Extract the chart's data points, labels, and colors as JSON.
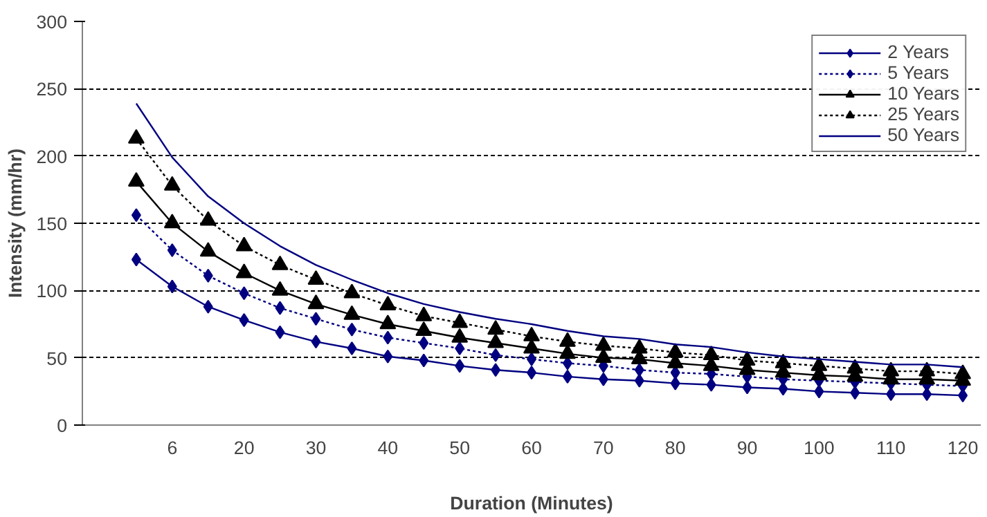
{
  "chart_data": {
    "type": "line",
    "xlabel": "Duration (Minutes)",
    "ylabel": "Intensity (mm/hr)",
    "categories": [
      null,
      null,
      "6",
      null,
      "20",
      null,
      "30",
      null,
      "40",
      null,
      "50",
      null,
      "60",
      null,
      "70",
      null,
      "80",
      null,
      "90",
      null,
      "100",
      null,
      "110",
      null,
      "120"
    ],
    "ylim": [
      0,
      300
    ],
    "yticks": [
      0,
      50,
      100,
      150,
      200,
      250,
      300
    ],
    "grid": "y",
    "legend": "top right",
    "series": [
      {
        "name": "2 Years",
        "color": "#000080",
        "marker": "diamond",
        "line_style": "solid",
        "values": [
          null,
          123,
          103,
          88,
          78,
          69,
          62,
          57,
          51,
          48,
          44,
          41,
          39,
          36,
          34,
          33,
          31,
          30,
          28,
          27,
          25,
          24,
          23,
          23,
          22
        ]
      },
      {
        "name": "5 Years",
        "color": "#000080",
        "marker": "diamond",
        "line_style": "dotted",
        "values": [
          null,
          156,
          130,
          111,
          98,
          87,
          79,
          71,
          65,
          61,
          57,
          52,
          49,
          46,
          44,
          41,
          39,
          38,
          36,
          34,
          33,
          32,
          31,
          30,
          29
        ]
      },
      {
        "name": "10 Years",
        "color": "#000000",
        "marker": "triangle",
        "line_style": "solid",
        "values": [
          null,
          181,
          150,
          129,
          113,
          100,
          90,
          82,
          75,
          70,
          65,
          61,
          57,
          53,
          50,
          49,
          46,
          44,
          41,
          39,
          37,
          36,
          34,
          34,
          33
        ]
      },
      {
        "name": "25 Years",
        "color": "#000000",
        "marker": "triangle",
        "line_style": "dotted",
        "values": [
          null,
          213,
          178,
          152,
          133,
          119,
          108,
          98,
          89,
          81,
          76,
          71,
          66,
          62,
          59,
          57,
          54,
          52,
          48,
          46,
          44,
          42,
          40,
          40,
          38
        ]
      },
      {
        "name": "50 Years",
        "color": "#000080",
        "marker": "none",
        "line_style": "solid",
        "values": [
          null,
          239,
          199,
          170,
          150,
          133,
          119,
          108,
          98,
          90,
          84,
          79,
          75,
          70,
          66,
          64,
          60,
          58,
          54,
          51,
          49,
          47,
          45,
          45,
          43
        ]
      }
    ]
  }
}
